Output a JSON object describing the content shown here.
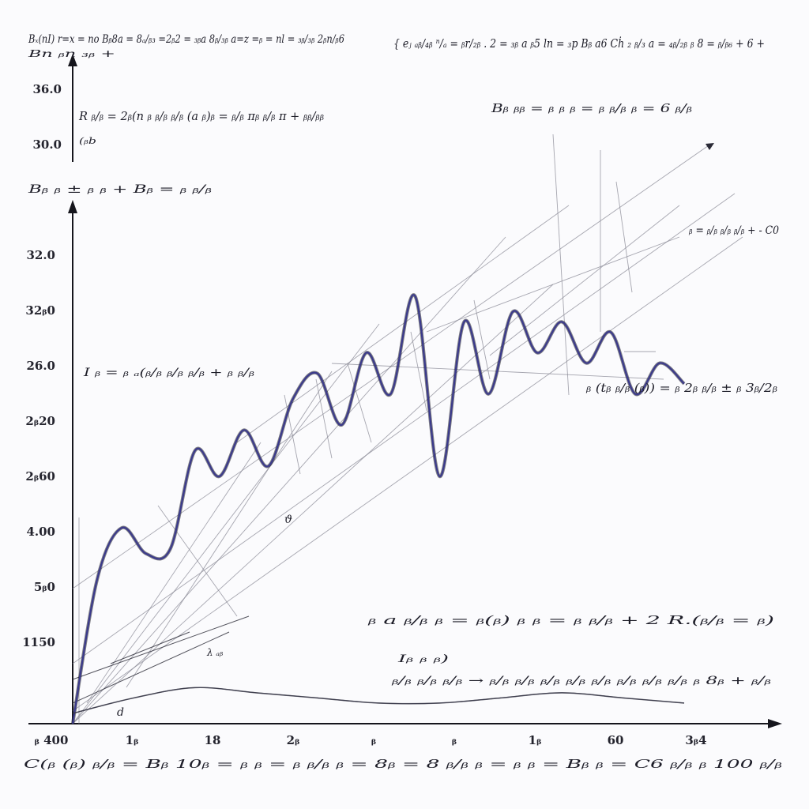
{
  "colors": {
    "background": "#fbfbfd",
    "main_series": "#3b3a8c",
    "secondary_series": "#3e3e4e",
    "construction_lines": "#8a8a96",
    "axis": "#15151c",
    "text": "#1d1d28"
  },
  "formulas": {
    "top_left": "Bₓ(nI) r=x = no Bᵦ8a = 8ₐ/ᵦ₃ =2ᵦ2 = ₃ᵦa 8ᵦ/₃ᵦ a=z =ᵦ = nl = ₃ᵦ/₃ᵦ 2ᵦn/ᵦ6",
    "top_left_sub": "Bn ᵦn ₃ᵦ +",
    "top_right": "{ eⱼ ₐᵦ/₄ᵦ ⁿ/ₐ = ᵦr/₂ᵦ . 2 = ₃ᵦ a ᵦ5 ln = ₃p Bᵦ a6 Cḣ ₂ ᵦ/₃ a = ₄ᵦ/₂ᵦ ᵦ 8 = ᵦ/ᵦ₆ + 6 +",
    "upper_mid": "R ᵦ/ᵦ = 2ᵦ(n ᵦ ᵦ/ᵦ ᵦ/ᵦ (a ᵦ)ᵦ = ᵦ/ᵦ πᵦ ᵦ/ᵦ π + ᵦᵦ/ᵦᵦ",
    "upper_mid_sub": "(ᵦb",
    "upper_right": "Bᵦ ᵦᵦ = ᵦ ᵦ ᵦ = ᵦ ᵦ/ᵦ ᵦ = 6 ᵦ/ᵦ",
    "mid_left": "Bᵦ ᵦ ± ᵦ ᵦ + Bᵦ = ᵦ ᵦ/ᵦ",
    "right_side": "ᵦ = ᵦ/ᵦ ᵦ/ᵦ ᵦ/ᵦ + - C0",
    "center_left": "I ᵦ = ᵦ ₐ(ᵦ/ᵦ ᵦ/ᵦ ᵦ/ᵦ + ᵦ ᵦ/ᵦ",
    "center_right": "ᵦ (tᵦ ᵦ/ᵦ (ᵦ)) = ᵦ 2ᵦ ᵦ/ᵦ ± ᵦ 3ᵦ/2ᵦ",
    "lower_right_1": "ᵦ a ᵦ/ᵦ ᵦ = ᵦ(ᵦ) ᵦ ᵦ = ᵦ ᵦ/ᵦ + 2 R.(ᵦ/ᵦ = ᵦ)",
    "lower_right_label": "Iᵦ ᵦ ᵦ)",
    "lower_right_2": "ᵦ/ᵦ ᵦ/ᵦ ᵦ/ᵦ → ᵦ/ᵦ ᵦ/ᵦ ᵦ/ᵦ ᵦ/ᵦ ᵦ/ᵦ ᵦ/ᵦ ᵦ/ᵦ ᵦ/ᵦ ᵦ 8ᵦ + ᵦ/ᵦ",
    "bottom": "C(ᵦ (ᵦ) ᵦ/ᵦ = Bᵦ 10ᵦ = ᵦ ᵦ = ᵦ ᵦ/ᵦ ᵦ = 8ᵦ = 8 ᵦ/ᵦ ᵦ = ᵦ ᵦ = Bᵦ ᵦ = C6 ᵦ/ᵦ ᵦ 100 ᵦ/ᵦ",
    "annotation_small_1": "λ ₐᵦ",
    "annotation_small_2": "d",
    "annotation_small_3": "ϑ"
  },
  "chart_data": {
    "type": "line",
    "title": "",
    "xlabel": "",
    "ylabel": "",
    "x_tick_labels": [
      "ᵦ 400",
      "1ᵦ",
      "18",
      "2ᵦ",
      "ᵦ",
      "ᵦ",
      "1ᵦ",
      "60",
      "3ᵦ4"
    ],
    "y_tick_labels_upper": [
      "36.0",
      "30.0"
    ],
    "y_tick_labels": [
      "32.0",
      "32ᵦ0",
      "26.0",
      "2ᵦ20",
      "2ᵦ60",
      "4.00",
      "5ᵦ0",
      "1150"
    ],
    "grid": false,
    "legend": "none",
    "series": [
      {
        "x": [
          0,
          4,
          8,
          12,
          16,
          20,
          24,
          28,
          32,
          36,
          40,
          44,
          48,
          52,
          56,
          60,
          64,
          68,
          72,
          76,
          80,
          84,
          88,
          92,
          96,
          100
        ],
        "y": [
          0,
          28,
          38,
          33,
          34,
          53,
          48,
          57,
          50,
          63,
          68,
          58,
          72,
          64,
          83,
          48,
          78,
          64,
          80,
          72,
          78,
          70,
          76,
          64,
          70,
          66
        ]
      },
      {
        "x": [
          0,
          10,
          20,
          30,
          40,
          50,
          60,
          70,
          80,
          90,
          100
        ],
        "y": [
          2,
          5,
          7,
          6,
          5,
          4,
          4,
          5,
          6,
          5,
          4
        ]
      }
    ]
  }
}
